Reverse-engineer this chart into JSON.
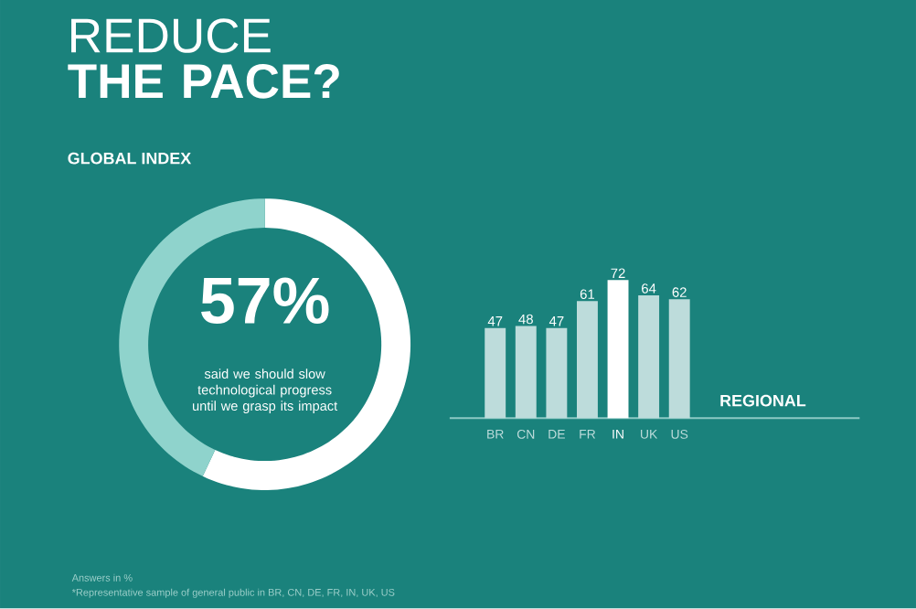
{
  "chart_data": [
    {
      "type": "donut",
      "title": "REDUCE **THE PACE?**",
      "subtitle": "GLOBAL INDEX",
      "categories": [
        null,
        null
      ],
      "values": [
        57,
        43
      ],
      "colors": [
        "#ffffff",
        "#8fd3cc"
      ],
      "value_labels": [
        "57%",
        null
      ],
      "annotations": [
        "said we should slow technological progress until we grasp its impact",
        "Answers in %",
        "*Representative sample of general public in BR, CN, DE, FR, IN, UK, US"
      ]
    },
    {
      "type": "bar",
      "annotations": [
        "REGIONAL"
      ],
      "categories": [
        "BR",
        "CN",
        "DE",
        "FR",
        "IN",
        "UK",
        "US"
      ],
      "values": [
        47,
        48,
        47,
        61,
        72,
        64,
        62
      ],
      "colors": [
        "#bddcdb",
        "#bddcdb",
        "#bddcdb",
        "#bddcdb",
        "#ffffff",
        "#bddcdb",
        "#bddcdb"
      ],
      "data_labels": true,
      "tick_labels": "x"
    }
  ]
}
